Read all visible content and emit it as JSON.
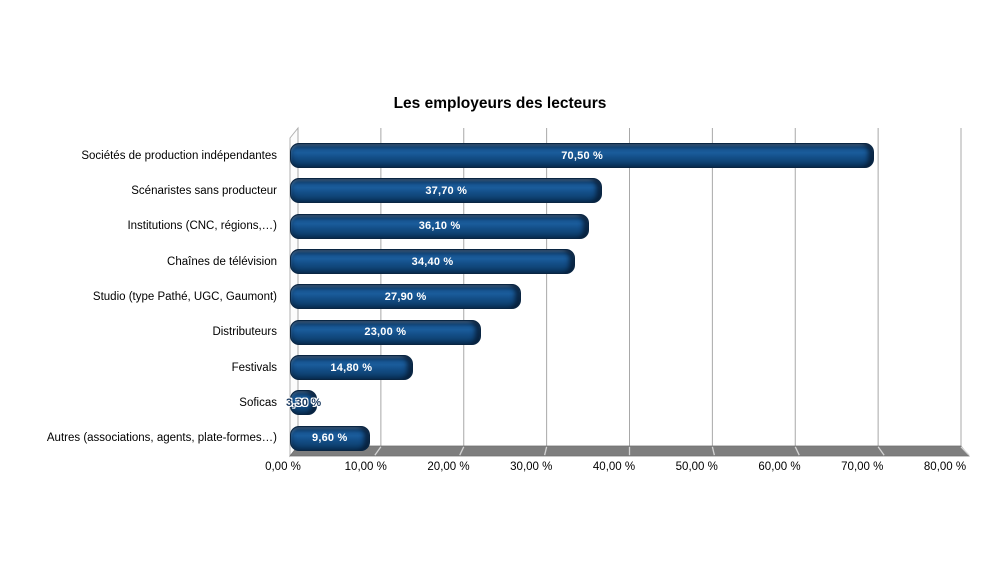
{
  "title": "Les employeurs des lecteurs",
  "chart_data": {
    "type": "bar",
    "orientation": "horizontal",
    "title": "Les employeurs des lecteurs",
    "categories": [
      "Sociétés de production indépendantes",
      "Scénaristes sans producteur",
      "Institutions (CNC, régions,…)",
      "Chaînes de télévision",
      "Studio (type Pathé, UGC, Gaumont)",
      "Distributeurs",
      "Festivals",
      "Soficas",
      "Autres (associations, agents, plate-formes…)"
    ],
    "values": [
      70.5,
      37.7,
      36.1,
      34.4,
      27.9,
      23.0,
      14.8,
      3.3,
      9.6
    ],
    "value_labels": [
      "70,50 %",
      "37,70 %",
      "36,10 %",
      "34,40 %",
      "27,90 %",
      "23,00 %",
      "14,80 %",
      "3,30 %",
      "9,60 %"
    ],
    "x_ticks": [
      "0,00 %",
      "10,00 %",
      "20,00 %",
      "30,00 %",
      "40,00 %",
      "50,00 %",
      "60,00 %",
      "70,00 %",
      "80,00 %"
    ],
    "xlim": [
      0,
      80
    ],
    "xlabel": "",
    "ylabel": "",
    "grid": true,
    "legend": false,
    "colors": {
      "bar": "#134d86",
      "bar_dark_edge": "#0a2a4e",
      "gridline": "#a8a8a8",
      "floor": "#7e7e7e",
      "wall_stroke": "#b0b0b0",
      "label_on_bar": "#ffffff",
      "label_overflow": "#17375e"
    }
  }
}
